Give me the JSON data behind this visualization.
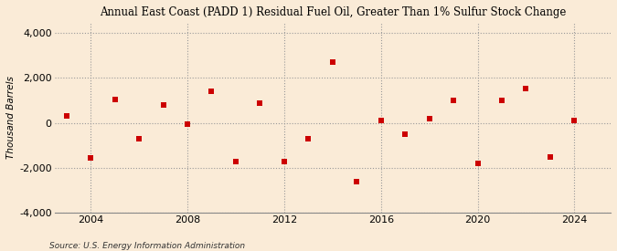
{
  "title": "Annual East Coast (PADD 1) Residual Fuel Oil, Greater Than 1% Sulfur Stock Change",
  "ylabel": "Thousand Barrels",
  "source": "Source: U.S. Energy Information Administration",
  "background_color": "#faebd7",
  "plot_background_color": "#faebd7",
  "marker_color": "#cc0000",
  "marker_size": 18,
  "xlim": [
    2002.5,
    2025.5
  ],
  "ylim": [
    -4000,
    4500
  ],
  "yticks": [
    -4000,
    -2000,
    0,
    2000,
    4000
  ],
  "xticks": [
    2004,
    2008,
    2012,
    2016,
    2020,
    2024
  ],
  "years": [
    2003,
    2004,
    2005,
    2006,
    2007,
    2008,
    2009,
    2010,
    2011,
    2012,
    2013,
    2014,
    2015,
    2016,
    2017,
    2018,
    2019,
    2020,
    2021,
    2022,
    2023,
    2024
  ],
  "values": [
    300,
    -1550,
    1050,
    -700,
    800,
    -50,
    1400,
    -1700,
    900,
    -1700,
    -700,
    2700,
    -2600,
    100,
    -500,
    200,
    1000,
    -1800,
    1000,
    1550,
    -1500,
    100
  ]
}
